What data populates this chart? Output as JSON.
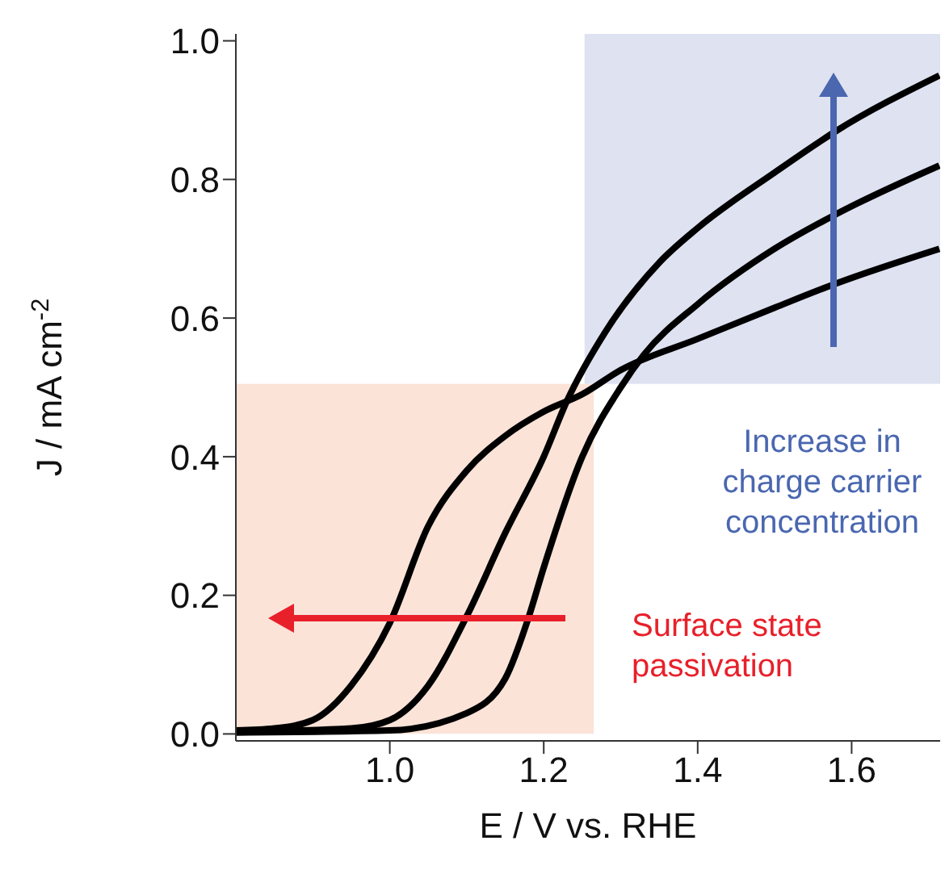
{
  "chart_data": {
    "type": "line",
    "xlabel": "E / V vs. RHE",
    "ylabel": "J / mA cm$^{-2}$",
    "xlim": [
      0.8,
      1.715
    ],
    "xticks": [
      {
        "value": 1.0,
        "label": "1.0"
      },
      1.2,
      1.4,
      1.6
    ],
    "ylim": [
      -0.01,
      1.01
    ],
    "yticks": [
      {
        "value": 0,
        "label": "0.0"
      },
      0.2,
      0.4,
      0.6,
      0.8,
      {
        "value": 1,
        "label": "1.0"
      }
    ],
    "grid": false,
    "marker": "none",
    "line_style": "solid",
    "series": [
      {
        "color": "#000000",
        "x": [
          0.8,
          0.85,
          0.9,
          0.95,
          1.0,
          1.05,
          1.1,
          1.15,
          1.2,
          1.25,
          1.3,
          1.4,
          1.5,
          1.58,
          1.714
        ],
        "values": [
          0.005,
          0.008,
          0.02,
          0.07,
          0.16,
          0.3,
          0.38,
          0.43,
          0.465,
          0.49,
          0.525,
          0.57,
          0.615,
          0.65,
          0.7
        ]
      },
      {
        "color": "#000000",
        "x": [
          0.8,
          0.95,
          1.0,
          1.05,
          1.1,
          1.15,
          1.2,
          1.23,
          1.28,
          1.35,
          1.4,
          1.5,
          1.58,
          1.714
        ],
        "values": [
          0.003,
          0.008,
          0.02,
          0.07,
          0.17,
          0.29,
          0.4,
          0.48,
          0.58,
          0.68,
          0.73,
          0.81,
          0.87,
          0.95
        ]
      },
      {
        "color": "#000000",
        "x": [
          0.8,
          1.0,
          1.1,
          1.15,
          1.18,
          1.2,
          1.25,
          1.3,
          1.33,
          1.4,
          1.5,
          1.58,
          1.714
        ],
        "values": [
          0.002,
          0.005,
          0.03,
          0.08,
          0.167,
          0.24,
          0.4,
          0.5,
          0.547,
          0.62,
          0.7,
          0.75,
          0.82
        ]
      }
    ],
    "bands": [
      {
        "axis": "x",
        "from": 0.8,
        "to": 1.265,
        "color": "#fbe3d8",
        "label": "Surface state passivation"
      },
      {
        "axis": "x",
        "from": 1.253,
        "to": 1.715,
        "color": "#dfe2f0",
        "label": "Increase in charge carrier concentration"
      }
    ]
  }
}
